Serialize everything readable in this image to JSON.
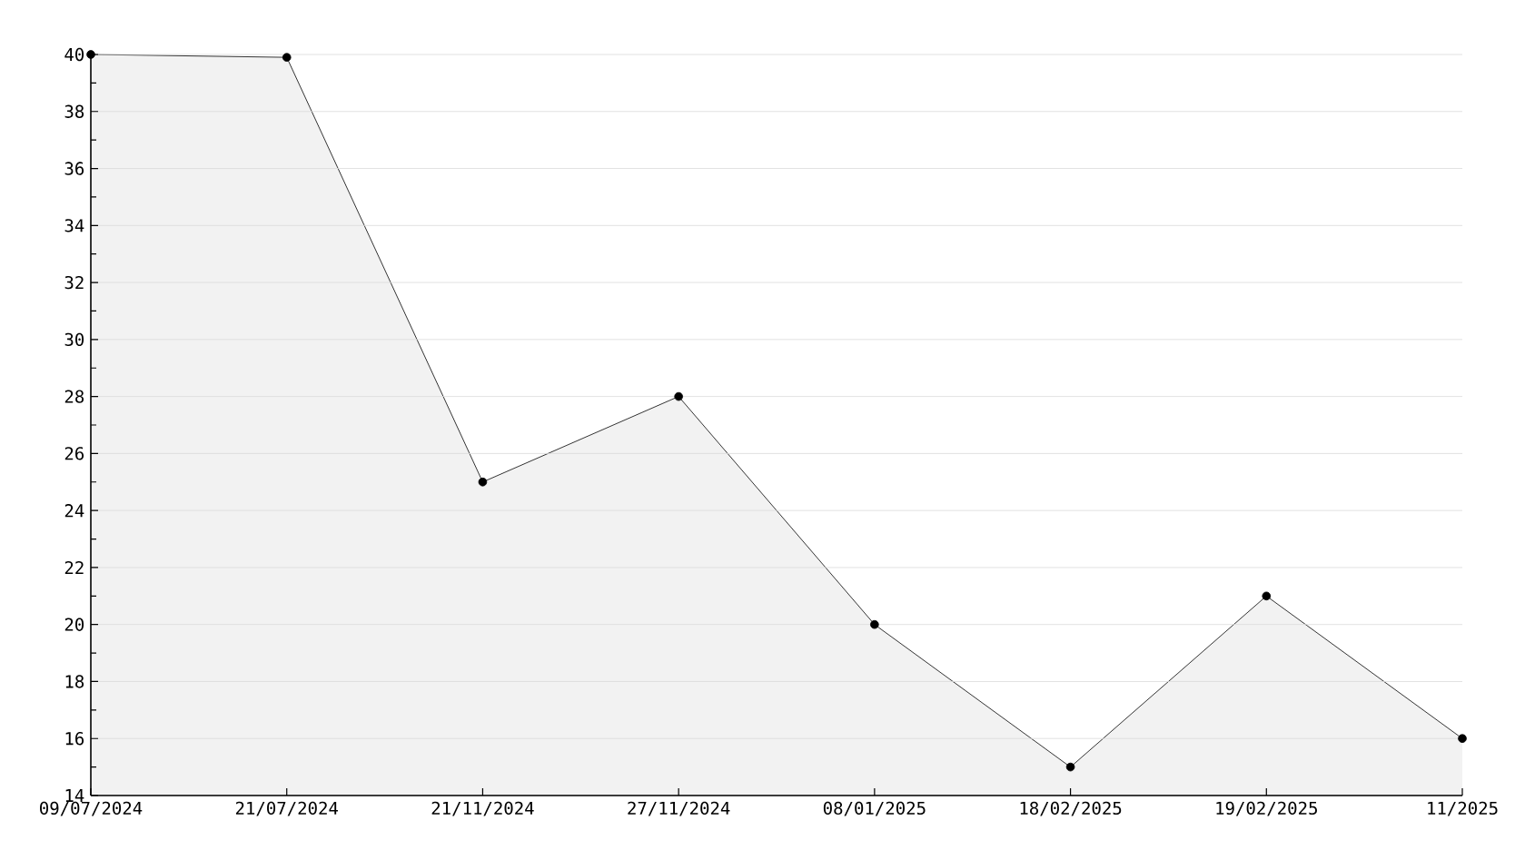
{
  "chart_data": {
    "type": "area",
    "categories": [
      "09/07/2024",
      "21/07/2024",
      "21/11/2024",
      "27/11/2024",
      "08/01/2025",
      "18/02/2025",
      "19/02/2025",
      "11/2025"
    ],
    "series": [
      {
        "color": "#000000",
        "values": [
          40,
          39.9,
          25,
          28,
          20,
          15,
          21,
          16
        ]
      }
    ],
    "ylim": [
      14,
      40
    ],
    "yticks": [
      14,
      16,
      18,
      20,
      22,
      24,
      26,
      28,
      30,
      32,
      34,
      36,
      38,
      40
    ],
    "grid": "y",
    "marker": "circle",
    "line_style": "solid"
  }
}
